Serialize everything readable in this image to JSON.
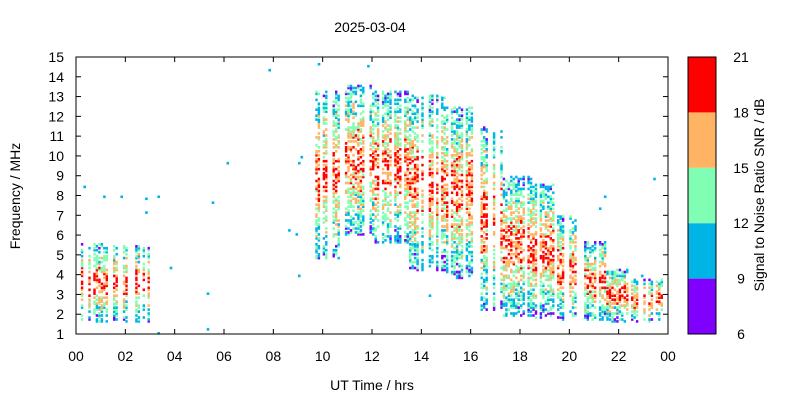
{
  "chart_data": {
    "type": "heatmap",
    "title": "2025-03-04",
    "xlabel": "UT Time / hrs",
    "ylabel": "Frequency / MHz",
    "colorbar_label": "Signal to Noise Ratio SNR / dB",
    "xlim": [
      0,
      24
    ],
    "ylim": [
      1,
      15
    ],
    "x_ticks": [
      "00",
      "02",
      "04",
      "06",
      "08",
      "10",
      "12",
      "14",
      "16",
      "18",
      "20",
      "22",
      "00"
    ],
    "y_ticks": [
      "1",
      "2",
      "3",
      "4",
      "5",
      "6",
      "7",
      "8",
      "9",
      "10",
      "11",
      "12",
      "13",
      "14",
      "15"
    ],
    "colorbar": {
      "ticks": [
        "6",
        "9",
        "12",
        "15",
        "18",
        "21"
      ],
      "bins": [
        {
          "min": 6,
          "max": 9,
          "color": "#8000ff"
        },
        {
          "min": 9,
          "max": 12,
          "color": "#00b4e6"
        },
        {
          "min": 12,
          "max": 15,
          "color": "#80ffb4"
        },
        {
          "min": 15,
          "max": 18,
          "color": "#ffb464"
        },
        {
          "min": 18,
          "max": 21,
          "color": "#ff0000"
        }
      ]
    },
    "regions": [
      {
        "t_start": 0.0,
        "t_end": 2.95,
        "f_min": 1.6,
        "f_max": 5.6
      },
      {
        "t_start": 9.7,
        "t_end": 10.8,
        "f_min": 4.8,
        "f_max": 13.3
      },
      {
        "t_start": 10.8,
        "t_end": 12.0,
        "f_min": 6.0,
        "f_max": 13.6
      },
      {
        "t_start": 12.0,
        "t_end": 13.5,
        "f_min": 5.6,
        "f_max": 13.3
      },
      {
        "t_start": 13.5,
        "t_end": 15.0,
        "f_min": 4.2,
        "f_max": 13.1
      },
      {
        "t_start": 15.0,
        "t_end": 16.2,
        "f_min": 3.8,
        "f_max": 12.5
      },
      {
        "t_start": 16.2,
        "t_end": 17.3,
        "f_min": 2.2,
        "f_max": 11.5
      },
      {
        "t_start": 17.3,
        "t_end": 18.5,
        "f_min": 1.9,
        "f_max": 9.0
      },
      {
        "t_start": 18.5,
        "t_end": 19.5,
        "f_min": 1.8,
        "f_max": 8.6
      },
      {
        "t_start": 19.5,
        "t_end": 20.5,
        "f_min": 1.7,
        "f_max": 7.0
      },
      {
        "t_start": 20.5,
        "t_end": 21.5,
        "f_min": 1.7,
        "f_max": 5.7
      },
      {
        "t_start": 21.5,
        "t_end": 22.5,
        "f_min": 1.6,
        "f_max": 4.3
      },
      {
        "t_start": 22.5,
        "t_end": 23.8,
        "f_min": 1.6,
        "f_max": 3.8
      }
    ],
    "outliers": [
      {
        "t": 0.3,
        "f": 8.5,
        "snr": 10
      },
      {
        "t": 1.1,
        "f": 8.0,
        "snr": 10
      },
      {
        "t": 1.8,
        "f": 8.0,
        "snr": 10
      },
      {
        "t": 2.8,
        "f": 7.9,
        "snr": 10
      },
      {
        "t": 3.3,
        "f": 8.0,
        "snr": 10
      },
      {
        "t": 2.8,
        "f": 7.2,
        "snr": 10
      },
      {
        "t": 3.3,
        "f": 1.1,
        "snr": 10
      },
      {
        "t": 3.8,
        "f": 4.4,
        "snr": 10
      },
      {
        "t": 5.3,
        "f": 3.1,
        "snr": 10
      },
      {
        "t": 5.5,
        "f": 7.7,
        "snr": 10
      },
      {
        "t": 5.3,
        "f": 1.3,
        "snr": 10
      },
      {
        "t": 6.1,
        "f": 9.7,
        "snr": 10
      },
      {
        "t": 7.8,
        "f": 14.4,
        "snr": 10
      },
      {
        "t": 8.6,
        "f": 6.3,
        "snr": 10
      },
      {
        "t": 8.9,
        "f": 6.1,
        "snr": 10
      },
      {
        "t": 9.0,
        "f": 9.7,
        "snr": 10
      },
      {
        "t": 9.1,
        "f": 10.0,
        "snr": 10
      },
      {
        "t": 9.0,
        "f": 4.0,
        "snr": 10
      },
      {
        "t": 9.8,
        "f": 14.7,
        "snr": 10
      },
      {
        "t": 11.8,
        "f": 14.6,
        "snr": 10
      },
      {
        "t": 14.3,
        "f": 3.0,
        "snr": 10
      },
      {
        "t": 21.2,
        "f": 7.4,
        "snr": 10
      },
      {
        "t": 21.4,
        "f": 8.0,
        "snr": 10
      },
      {
        "t": 22.9,
        "f": 4.0,
        "snr": 10
      },
      {
        "t": 23.4,
        "f": 8.9,
        "snr": 10
      }
    ]
  }
}
